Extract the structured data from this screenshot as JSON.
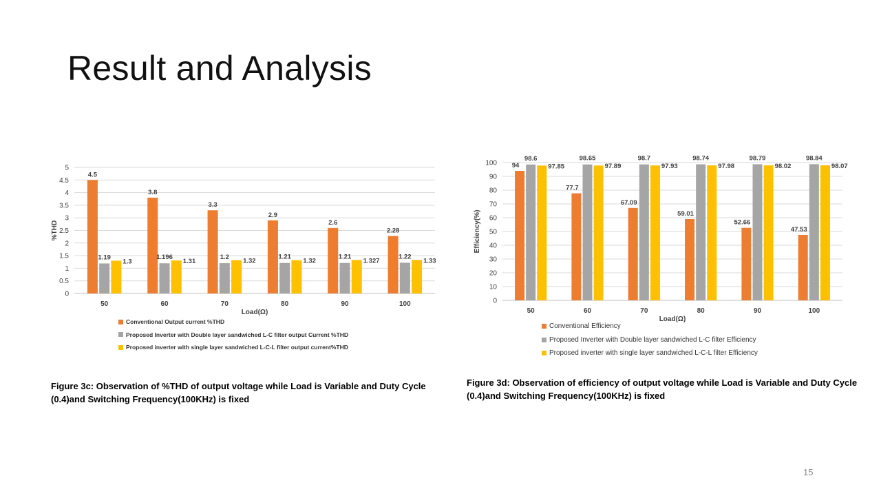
{
  "slide": {
    "title": "Result and Analysis",
    "page_number": "15"
  },
  "colors": {
    "conventional": "#ED7D31",
    "double_layer": "#A5A5A5",
    "single_layer": "#FFC000",
    "gridline": "#d9d9d9",
    "axis_text": "#404040"
  },
  "figures": [
    {
      "caption": "Figure 3c: Observation of %THD of output voltage while Load is Variable and Duty Cycle (0.4)and Switching Frequency(100KHz) is fixed"
    },
    {
      "caption": "Figure 3d: Observation of efficiency of output voltage while Load is Variable and Duty Cycle (0.4)and Switching Frequency(100KHz) is fixed"
    }
  ],
  "chart_data": [
    {
      "type": "bar",
      "title": "",
      "xlabel": "Load(Ω)",
      "ylabel": "%THD",
      "ylim": [
        0,
        5
      ],
      "ytick_step": 0.5,
      "yticks": [
        "0",
        "0.5",
        "1",
        "1.5",
        "2",
        "2.5",
        "3",
        "3.5",
        "4",
        "4.5",
        "5"
      ],
      "grid": true,
      "legend_position": "bottom",
      "categories": [
        "50",
        "60",
        "70",
        "80",
        "90",
        "100"
      ],
      "series": [
        {
          "name": "Conventional Output current  %THD",
          "color_key": "conventional",
          "values": [
            4.5,
            3.8,
            3.3,
            2.9,
            2.6,
            2.28
          ],
          "labels": [
            "4.5",
            "3.8",
            "3.3",
            "2.9",
            "2.6",
            "2.28"
          ]
        },
        {
          "name": "Proposed Inverter with Double layer sandwiched L-C filter output Current %THD",
          "color_key": "double_layer",
          "values": [
            1.19,
            1.196,
            1.2,
            1.21,
            1.21,
            1.22
          ],
          "labels": [
            "1.19",
            "1.196",
            "1.2",
            "1.21",
            "1.21",
            "1.22"
          ]
        },
        {
          "name": "Proposed inverter with single layer sandwiched L-C-L filter output current%THD",
          "color_key": "single_layer",
          "values": [
            1.3,
            1.31,
            1.32,
            1.32,
            1.327,
            1.33
          ],
          "labels": [
            "1.3",
            "1.31",
            "1.32",
            "1.32",
            "1.327",
            "1.33"
          ]
        }
      ]
    },
    {
      "type": "bar",
      "title": "",
      "xlabel": "Load(Ω)",
      "ylabel": "Efficiency(%)",
      "ylim": [
        0,
        100
      ],
      "ytick_step": 10,
      "yticks": [
        "0",
        "10",
        "20",
        "30",
        "40",
        "50",
        "60",
        "70",
        "80",
        "90",
        "100"
      ],
      "grid": true,
      "legend_position": "bottom",
      "categories": [
        "50",
        "60",
        "70",
        "80",
        "90",
        "100"
      ],
      "series": [
        {
          "name": "Conventional Efficiency",
          "color_key": "conventional",
          "values": [
            94,
            77.7,
            67.09,
            59.01,
            52.66,
            47.53
          ],
          "labels": [
            "94",
            "77.7",
            "67.09",
            "59.01",
            "52.66",
            "47.53"
          ]
        },
        {
          "name": "Proposed Inverter with Double layer sandwiched L-C filter Efficiency",
          "color_key": "double_layer",
          "values": [
            98.6,
            98.65,
            98.7,
            98.74,
            98.79,
            98.84
          ],
          "labels": [
            "98.6",
            "98.65",
            "98.7",
            "98.74",
            "98.79",
            "98.84"
          ]
        },
        {
          "name": "Proposed inverter with single layer sandwiched L-C-L filter Efficiency",
          "color_key": "single_layer",
          "values": [
            97.85,
            97.89,
            97.93,
            97.98,
            98.02,
            98.07
          ],
          "labels": [
            "97.85",
            "97.89",
            "97.93",
            "97.98",
            "98.02",
            "98.07"
          ]
        }
      ]
    }
  ]
}
